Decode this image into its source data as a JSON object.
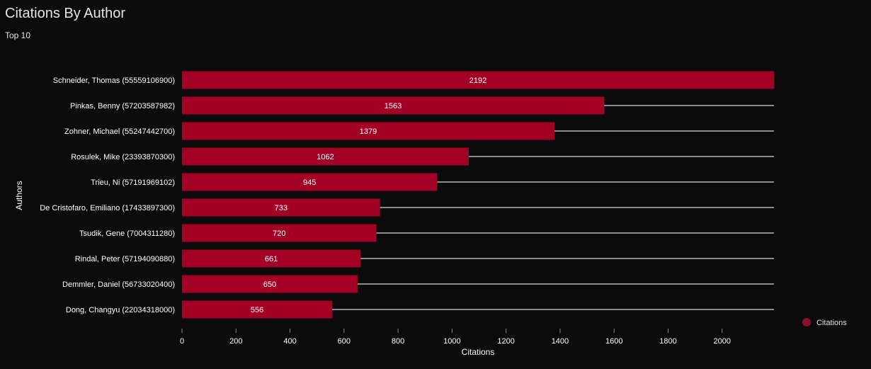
{
  "chart_data": {
    "type": "bar",
    "orientation": "horizontal",
    "title": "Citations By Author",
    "subtitle": "Top 10",
    "xlabel": "Citations",
    "ylabel": "Authors",
    "categories": [
      "Schneider, Thomas (55559106900)",
      "Pinkas, Benny (57203587982)",
      "Zohner, Michael (55247442700)",
      "Rosulek, Mike (23393870300)",
      "Trieu, Ni (57191969102)",
      "De Cristofaro, Emiliano (17433897300)",
      "Tsudik, Gene (7004311280)",
      "Rindal, Peter (57194090880)",
      "Demmler, Daniel (56733020400)",
      "Dong, Changyu (22034318000)"
    ],
    "series": [
      {
        "name": "Citations",
        "values": [
          2192,
          1563,
          1379,
          1062,
          945,
          733,
          720,
          661,
          650,
          556
        ],
        "color": "#a30026"
      }
    ],
    "xlim": [
      0,
      2192
    ],
    "xticks": [
      0,
      200,
      400,
      600,
      800,
      1000,
      1200,
      1400,
      1600,
      1800,
      2000
    ],
    "data_labels": true,
    "legend": "right",
    "track_lines": true,
    "colors": {
      "background": "#0b0b0b",
      "bar": "#a30026",
      "track": "#8c8c8c",
      "legend_marker": "#8a0f2a",
      "text": "#ffffff"
    }
  }
}
